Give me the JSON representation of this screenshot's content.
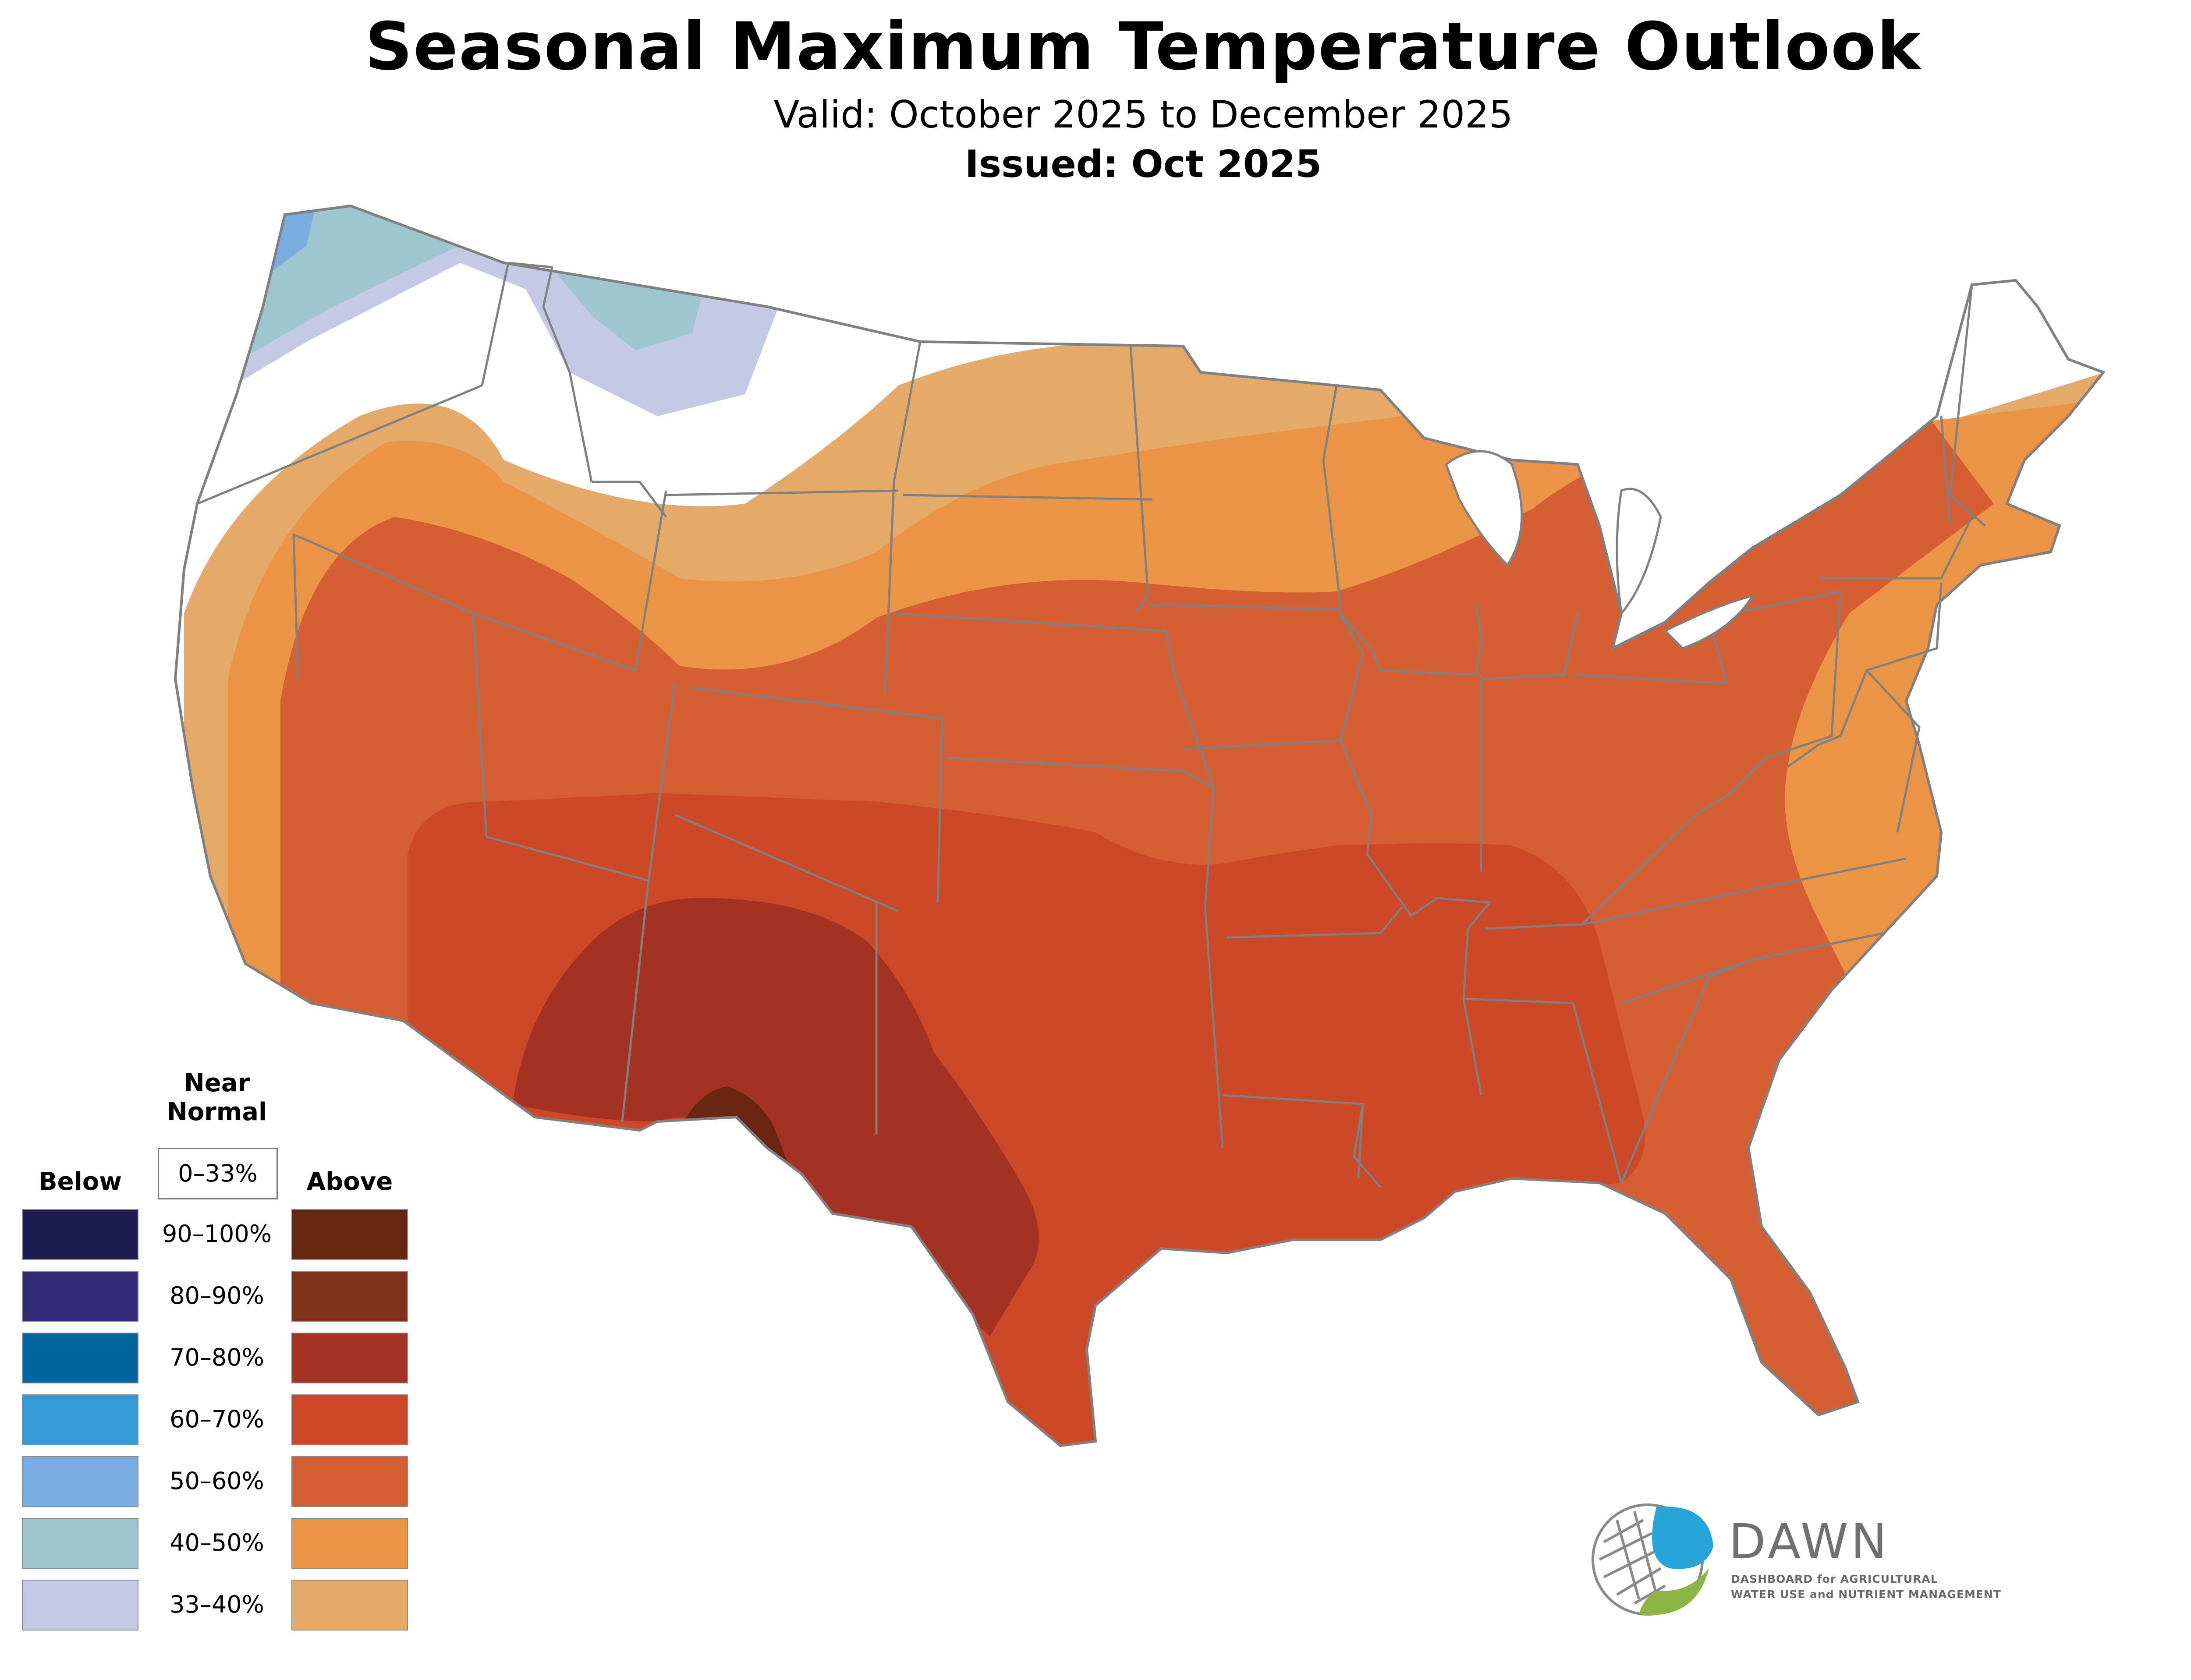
{
  "title": "Seasonal Maximum Temperature Outlook",
  "valid": "Valid: October 2025 to December 2025",
  "issued": "Issued: Oct 2025",
  "legend": {
    "near_normal": "Near\nNormal",
    "near_range": "0–33%",
    "below": "Below",
    "above": "Above",
    "rows": [
      {
        "label": "90–100%",
        "below_color": "#1e1b52",
        "above_color": "#692610"
      },
      {
        "label": "80–90%",
        "below_color": "#332b78",
        "above_color": "#83321a"
      },
      {
        "label": "70–80%",
        "below_color": "#00659c",
        "above_color": "#a43222"
      },
      {
        "label": "60–70%",
        "below_color": "#339bd6",
        "above_color": "#cd4826"
      },
      {
        "label": "50–60%",
        "below_color": "#7aaddf",
        "above_color": "#d55e32"
      },
      {
        "label": "40–50%",
        "below_color": "#9ec6d1",
        "above_color": "#ec9446"
      },
      {
        "label": "33–40%",
        "below_color": "#c4cae6",
        "above_color": "#e6aa68"
      }
    ]
  },
  "colors": {
    "above_33_40": "#e6aa68",
    "above_40_50": "#ec9446",
    "above_50_60": "#d55e32",
    "above_60_70": "#cd4826",
    "above_70_80": "#a43222",
    "above_80_90": "#83321a",
    "below_33_40": "#c4cae6",
    "below_40_50": "#9ec6d1",
    "below_50_60": "#7aaddf",
    "border": "#808080"
  },
  "logo": {
    "name": "DAWN",
    "line1": "DASHBOARD for AGRICULTURAL",
    "line2": "WATER USE and NUTRIENT MANAGEMENT"
  }
}
